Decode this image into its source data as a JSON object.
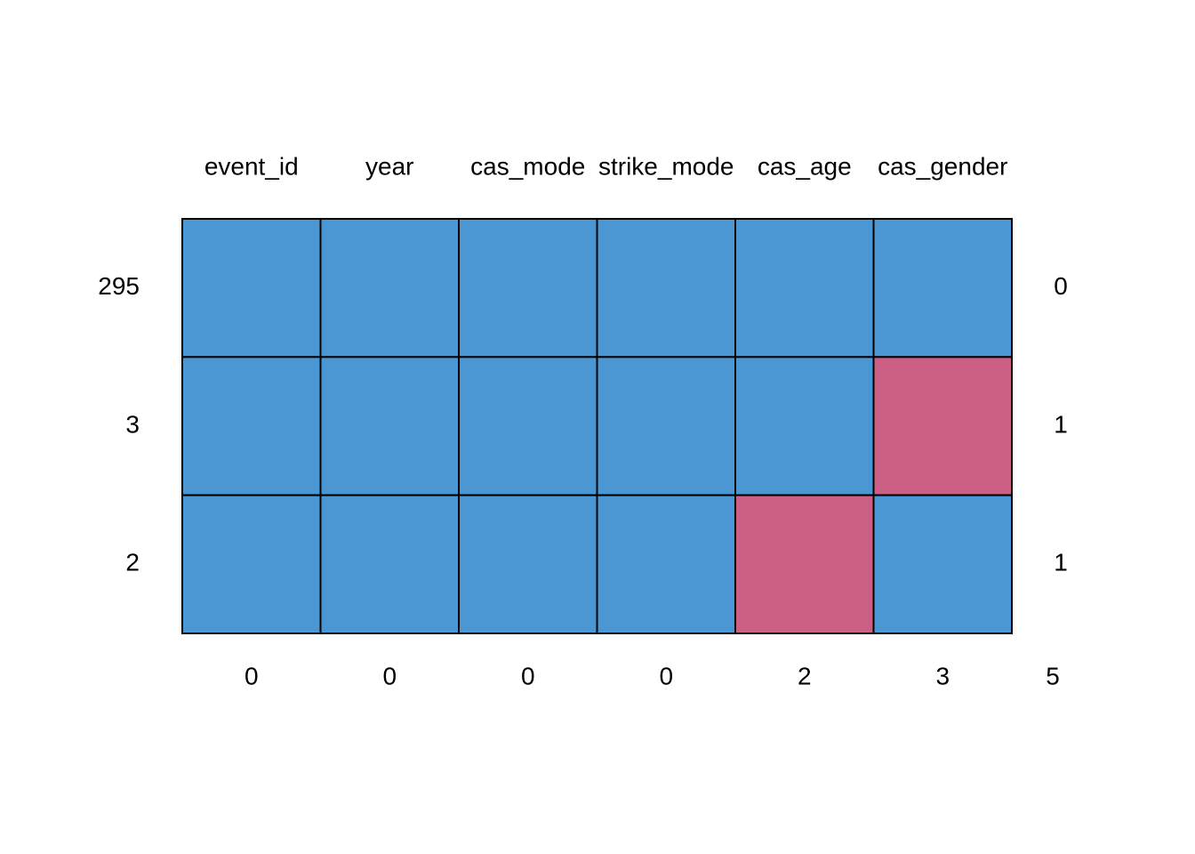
{
  "chart_data": {
    "type": "heatmap",
    "title": "",
    "xlabel": "",
    "ylabel": "",
    "columns": [
      "event_id",
      "year",
      "cas_mode",
      "strike_mode",
      "cas_age",
      "cas_gender"
    ],
    "rows": [
      {
        "count": 295,
        "pattern": [
          1,
          1,
          1,
          1,
          1,
          1
        ],
        "n_missing": 0
      },
      {
        "count": 3,
        "pattern": [
          1,
          1,
          1,
          1,
          1,
          0
        ],
        "n_missing": 1
      },
      {
        "count": 2,
        "pattern": [
          1,
          1,
          1,
          1,
          0,
          1
        ],
        "n_missing": 1
      }
    ],
    "column_missing_totals": [
      0,
      0,
      0,
      0,
      2,
      3
    ],
    "total_missing": 5,
    "colors": {
      "observed": "#4a97d4",
      "missing": "#cb5f84",
      "border": "#000000"
    }
  }
}
